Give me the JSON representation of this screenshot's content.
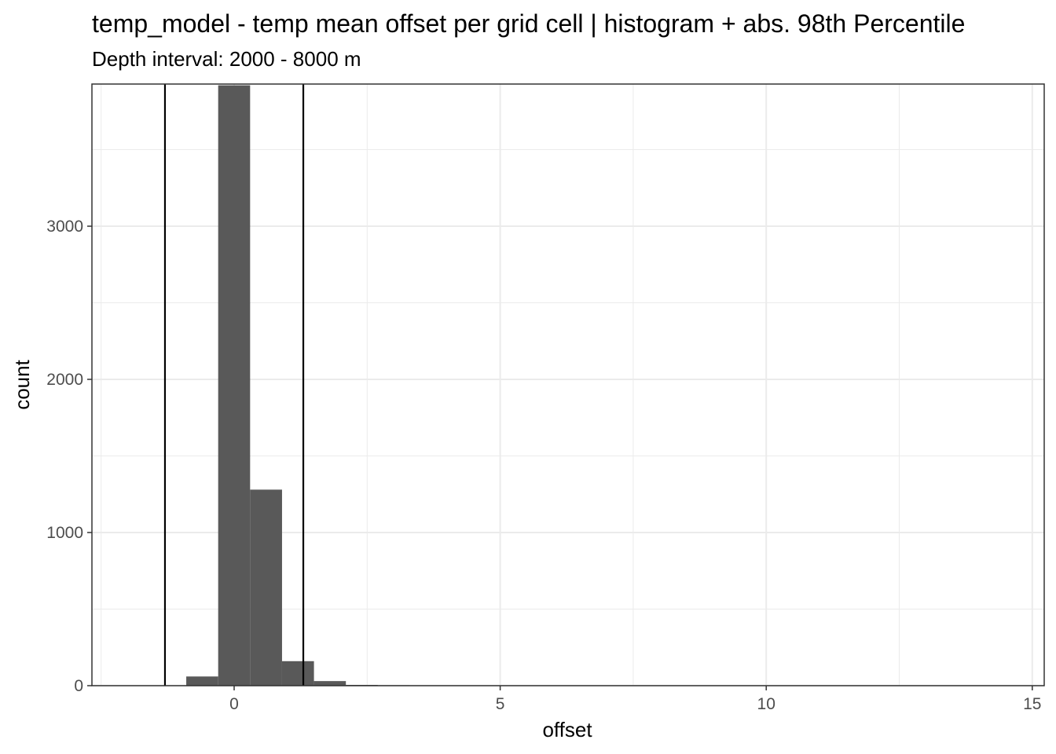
{
  "chart_data": {
    "type": "bar",
    "title": "temp_model  -  temp mean offset per grid cell | histogram + abs. 98th Percentile",
    "subtitle": "Depth interval: 2000 - 8000 m",
    "xlabel": "offset",
    "ylabel": "count",
    "xlim": [
      -2.68,
      15.2
    ],
    "ylim": [
      0,
      3920
    ],
    "x_ticks": [
      0,
      5,
      10,
      15
    ],
    "y_ticks": [
      0,
      1000,
      2000,
      3000
    ],
    "x_tick_labels": [
      "0",
      "5",
      "10",
      "15"
    ],
    "y_tick_labels": [
      "0",
      "1000",
      "2000",
      "3000"
    ],
    "y_minor_ticks": [
      500,
      1500,
      2500,
      3500
    ],
    "x_minor_ticks": [
      -2.5,
      2.5,
      7.5,
      12.5
    ],
    "bin_width": 0.6,
    "bins": [
      {
        "x0": -0.9,
        "x1": -0.3,
        "count": 60
      },
      {
        "x0": -0.3,
        "x1": 0.3,
        "count": 3920
      },
      {
        "x0": 0.3,
        "x1": 0.9,
        "count": 1280
      },
      {
        "x0": 0.9,
        "x1": 1.5,
        "count": 160
      },
      {
        "x0": 1.5,
        "x1": 2.1,
        "count": 30
      },
      {
        "x0": 2.1,
        "x1": 2.7,
        "count": 5
      },
      {
        "x0": 2.7,
        "x1": 3.3,
        "count": 3
      }
    ],
    "percentile_lines": [
      -1.3,
      1.3
    ],
    "grid": true,
    "bar_color": "#595959",
    "grid_color": "#ebebeb",
    "line_color": "#000000"
  }
}
